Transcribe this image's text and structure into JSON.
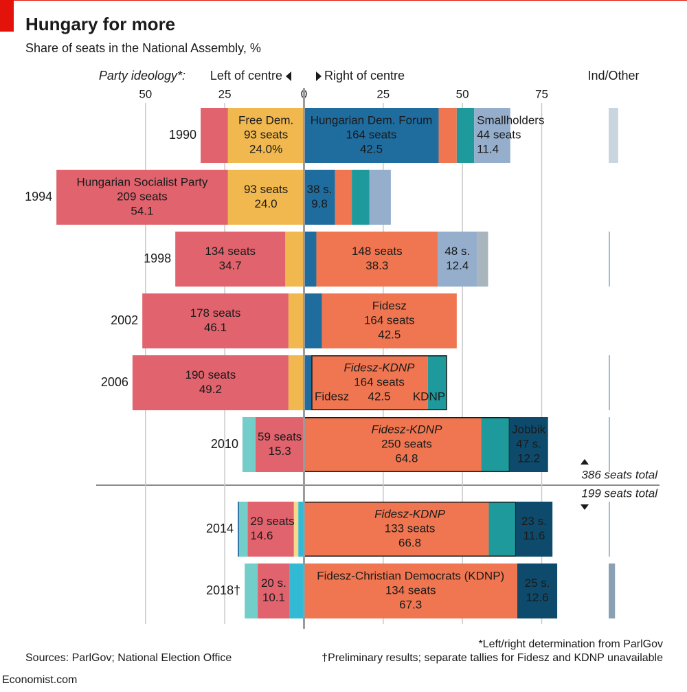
{
  "chart_data": {
    "type": "diverging-stacked-bar",
    "title": "Hungary for more",
    "subtitle": "Share of seats in the National Assembly, %",
    "ideology_label": "Party ideology*:",
    "left_label": "Left of centre",
    "right_label": "Right of centre",
    "other_label": "Ind/Other",
    "xlim": [
      -79,
      84
    ],
    "xticks": [
      {
        "value": -50,
        "label": "50"
      },
      {
        "value": -25,
        "label": "25"
      },
      0,
      25,
      50,
      75
    ],
    "grid": true,
    "rows": [
      {
        "year": "1990",
        "left": [
          {
            "value": 24.0,
            "color": "#f0b84f",
            "text_color": "#1a1a1a",
            "lines": [
              "Free Dem.",
              "93 seats"
            ],
            "value_label": "24.0%"
          },
          {
            "value": 8.6,
            "color": "#e0636d"
          }
        ],
        "right": [
          {
            "value": 42.5,
            "color": "#1f6c9e",
            "text_color": "#ffffff",
            "lines": [
              "Hungarian Dem. Forum",
              "164 seats"
            ],
            "value_label": "42.5"
          },
          {
            "value": 5.7,
            "color": "#ef7650"
          },
          {
            "value": 5.5,
            "color": "#1e9a9c"
          },
          {
            "value": 11.4,
            "color": "#95aecc",
            "text_color": "#1a1a1a",
            "lines": [
              "Smallholders",
              "44 seats"
            ],
            "value_label": "11.4"
          }
        ],
        "other": {
          "value": 3.0,
          "color": "#c9d6df"
        }
      },
      {
        "year": "1994",
        "left": [
          {
            "value": 24.0,
            "color": "#f0b84f",
            "text_color": "#1a1a1a",
            "lines": [
              "93 seats"
            ],
            "value_label": "24.0"
          },
          {
            "value": 54.1,
            "color": "#e0636d",
            "text_color": "#ffffff",
            "lines": [
              "Hungarian Socialist Party",
              "209 seats"
            ],
            "value_label": "54.1"
          }
        ],
        "right": [
          {
            "value": 9.8,
            "color": "#1f6c9e",
            "text_color": "#ffffff",
            "lines": [
              "38 s."
            ],
            "value_label": "9.8"
          },
          {
            "value": 5.3,
            "color": "#ef7650"
          },
          {
            "value": 5.5,
            "color": "#1e9a9c"
          },
          {
            "value": 6.8,
            "color": "#95aecc"
          }
        ],
        "other": null
      },
      {
        "year": "1998",
        "left": [
          {
            "value": 5.9,
            "color": "#f0b84f"
          },
          {
            "value": 34.7,
            "color": "#e0636d",
            "text_color": "#ffffff",
            "lines": [
              "134 seats"
            ],
            "value_label": "34.7"
          }
        ],
        "right": [
          {
            "value": 3.9,
            "color": "#1f6c9e"
          },
          {
            "value": 38.3,
            "color": "#ef7650",
            "text_color": "#ffffff",
            "lines": [
              "148 seats"
            ],
            "value_label": "38.3"
          },
          {
            "value": 12.4,
            "color": "#95aecc",
            "text_color": "#1a1a1a",
            "lines": [
              "48 s."
            ],
            "value_label": "12.4"
          },
          {
            "value": 3.5,
            "color": "#a9b5bd"
          }
        ],
        "other": {
          "value": 0.4,
          "color": "#9fb2c2"
        }
      },
      {
        "year": "2002",
        "left": [
          {
            "value": 4.9,
            "color": "#f0b84f"
          },
          {
            "value": 46.1,
            "color": "#e0636d",
            "text_color": "#ffffff",
            "lines": [
              "178 seats"
            ],
            "value_label": "46.1"
          }
        ],
        "right": [
          {
            "value": 5.7,
            "color": "#1f6c9e"
          },
          {
            "value": 42.5,
            "color": "#ef7650",
            "text_color": "#ffffff",
            "lines": [
              "Fidesz",
              "164 seats"
            ],
            "value_label": "42.5"
          }
        ],
        "other": null
      },
      {
        "year": "2006",
        "left": [
          {
            "value": 4.9,
            "color": "#f0b84f"
          },
          {
            "value": 49.2,
            "color": "#e0636d",
            "text_color": "#ffffff",
            "lines": [
              "190 seats"
            ],
            "value_label": "49.2"
          }
        ],
        "right": [
          {
            "value": 2.5,
            "color": "#1f6c9e"
          },
          {
            "value": 42.5,
            "boxed": true,
            "text_color": "#ffffff",
            "lines": [
              "Fidesz-KDNP",
              "164 seats"
            ],
            "value_label": "42.5",
            "parts": [
              {
                "label": "Fidesz",
                "value": 36.6,
                "color": "#ef7650"
              },
              {
                "label": "KDNP",
                "value": 5.9,
                "color": "#1e9a9c"
              }
            ]
          }
        ],
        "other": {
          "value": 0.4,
          "color": "#9fb2c2"
        }
      },
      {
        "year": "2010",
        "left": [
          {
            "value": 15.3,
            "color": "#e0636d",
            "text_color": "#ffffff",
            "lines": [
              "59 seats"
            ],
            "value_label": "15.3"
          },
          {
            "value": 4.1,
            "color": "#73cdc9"
          }
        ],
        "right": [
          {
            "value": 64.8,
            "boxed": true,
            "text_color": "#ffffff",
            "lines": [
              "Fidesz-KDNP",
              "250 seats"
            ],
            "value_label": "64.8",
            "parts": [
              {
                "value": 55.9,
                "color": "#ef7650"
              },
              {
                "value": 8.9,
                "color": "#1e9a9c"
              }
            ]
          },
          {
            "value": 12.2,
            "color": "#0e4a6b",
            "text_color": "#ffffff",
            "lines": [
              "Jobbik",
              "47 s."
            ],
            "value_label": "12.2"
          }
        ],
        "other": {
          "value": 0.4,
          "color": "#9fb2c2"
        }
      },
      {
        "year": "2014",
        "left": [
          {
            "value": 1.8,
            "color": "#32b9d4"
          },
          {
            "value": 1.4,
            "color": "#f6d98c"
          },
          {
            "value": 14.6,
            "color": "#e0636d",
            "text_color": "#ffffff",
            "lines": [
              "29 seats"
            ],
            "value_label": "14.6"
          },
          {
            "value": 2.7,
            "color": "#73cdc9"
          },
          {
            "value": 0.4,
            "color": "#1f6c9e"
          }
        ],
        "right": [
          {
            "value": 66.8,
            "boxed": true,
            "text_color": "#ffffff",
            "lines": [
              "Fidesz-KDNP",
              "133 seats"
            ],
            "value_label": "66.8",
            "parts": [
              {
                "value": 58.3,
                "color": "#ef7650"
              },
              {
                "value": 8.5,
                "color": "#1e9a9c"
              }
            ]
          },
          {
            "value": 11.6,
            "color": "#0e4a6b",
            "text_color": "#ffffff",
            "lines": [
              "23 s."
            ],
            "value_label": "11.6"
          }
        ],
        "other": {
          "value": 0.4,
          "color": "#9fb2c2"
        }
      },
      {
        "year": "2018†",
        "left": [
          {
            "value": 4.5,
            "color": "#32b9d4"
          },
          {
            "value": 10.1,
            "color": "#e0636d",
            "text_color": "#ffffff",
            "lines": [
              "20 s."
            ],
            "value_label": "10.1"
          },
          {
            "value": 4.1,
            "color": "#73cdc9"
          }
        ],
        "right": [
          {
            "value": 67.3,
            "color": "#ef7650",
            "text_color": "#ffffff",
            "lines": [
              "Fidesz-Christian Democrats (KDNP)",
              "134 seats"
            ],
            "value_label": "67.3"
          },
          {
            "value": 12.6,
            "color": "#0e4a6b",
            "text_color": "#ffffff",
            "lines": [
              "25 s."
            ],
            "value_label": "12.6"
          }
        ],
        "other": {
          "value": 2.0,
          "color": "#8aa0b4"
        }
      }
    ],
    "divider_notes": [
      "386 seats total",
      "199 seats total"
    ],
    "sources": "Sources: ParlGov; National Election Office",
    "footnotes": [
      "*Left/right determination from ParlGov",
      "†Preliminary results; separate tallies for Fidesz and KDNP unavailable"
    ],
    "brand": "Economist.com"
  }
}
